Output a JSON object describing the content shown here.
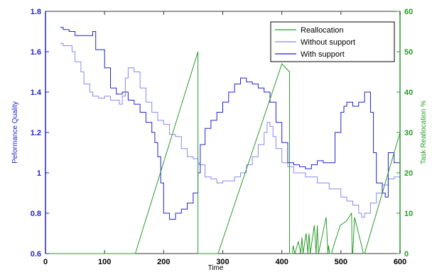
{
  "chart_data": {
    "type": "line",
    "xlabel": "Time",
    "ylabel_left": "Peformance Quality",
    "ylabel_right": "Task Reallocation %",
    "xlim": [
      0,
      600
    ],
    "ylim_left": [
      0.6,
      1.8
    ],
    "ylim_right": [
      0,
      60
    ],
    "xticks": [
      "0",
      "100",
      "200",
      "300",
      "400",
      "500",
      "600"
    ],
    "yticks_left": [
      "0.6",
      "0.8",
      "1",
      "1.2",
      "1.4",
      "1.6",
      "1.8"
    ],
    "yticks_right": [
      "0",
      "10",
      "20",
      "30",
      "40",
      "50",
      "60"
    ],
    "legend_position": "top-right",
    "colors": {
      "reallocation": "#2a9a2a",
      "without_support": "#8888ee",
      "with_support": "#2222cc",
      "axis_left": "#2222cc",
      "axis_right": "#2a9a2a"
    },
    "series": [
      {
        "name": "Reallocation",
        "axis": "right",
        "x": [
          0,
          152,
          258,
          258,
          260,
          290,
          292,
          400,
          413,
          413,
          414,
          418,
          419,
          422,
          428,
          432,
          434,
          436,
          441,
          444,
          446,
          448,
          455,
          458,
          460,
          462,
          475,
          478,
          479,
          481,
          484,
          490,
          499,
          509,
          518,
          519,
          520,
          523,
          535,
          538,
          540,
          600
        ],
        "y": [
          0,
          0,
          50,
          0,
          0,
          0,
          0,
          47,
          45,
          0,
          0,
          0,
          2,
          0,
          3,
          0,
          4,
          0,
          5,
          0,
          5,
          0,
          7,
          0,
          7,
          0,
          9,
          0,
          2,
          0,
          0,
          3,
          7,
          8,
          10,
          0,
          0,
          9,
          2,
          0,
          0,
          30
        ]
      },
      {
        "name": "Without support",
        "axis": "left",
        "x": [
          25,
          30,
          45,
          50,
          60,
          65,
          75,
          80,
          90,
          100,
          110,
          125,
          130,
          135,
          140,
          150,
          160,
          170,
          180,
          190,
          200,
          210,
          220,
          230,
          240,
          250,
          258,
          260,
          270,
          280,
          290,
          300,
          320,
          330,
          340,
          350,
          360,
          370,
          375,
          380,
          385,
          390,
          400,
          410,
          420,
          440,
          460,
          480,
          500,
          510,
          520,
          530,
          535,
          540,
          550,
          560,
          570,
          580,
          590,
          600
        ],
        "y": [
          1.64,
          1.63,
          1.6,
          1.55,
          1.5,
          1.44,
          1.4,
          1.38,
          1.37,
          1.38,
          1.36,
          1.34,
          1.38,
          1.47,
          1.52,
          1.5,
          1.42,
          1.35,
          1.3,
          1.26,
          1.24,
          1.19,
          1.18,
          1.12,
          1.08,
          1.07,
          1.05,
          1.04,
          0.98,
          0.97,
          0.95,
          0.96,
          0.98,
          1.0,
          1.04,
          1.08,
          1.14,
          1.2,
          1.25,
          1.23,
          1.18,
          1.12,
          1.05,
          1.03,
          1.0,
          0.98,
          0.95,
          0.92,
          0.88,
          0.86,
          0.84,
          0.8,
          0.78,
          0.8,
          0.85,
          0.9,
          0.94,
          0.97,
          0.98,
          1.0
        ]
      },
      {
        "name": "With support",
        "axis": "left",
        "x": [
          25,
          30,
          40,
          50,
          60,
          80,
          85,
          100,
          110,
          120,
          130,
          140,
          150,
          160,
          170,
          180,
          185,
          190,
          195,
          200,
          210,
          220,
          230,
          240,
          250,
          258,
          262,
          270,
          280,
          290,
          300,
          310,
          320,
          330,
          340,
          350,
          360,
          370,
          380,
          390,
          400,
          410,
          420,
          430,
          440,
          450,
          460,
          470,
          480,
          490,
          500,
          505,
          510,
          520,
          530,
          540,
          550,
          555,
          560,
          570,
          575,
          580,
          590,
          600
        ],
        "y": [
          1.72,
          1.71,
          1.7,
          1.68,
          1.68,
          1.7,
          1.61,
          1.52,
          1.42,
          1.39,
          1.4,
          1.36,
          1.34,
          1.3,
          1.25,
          1.2,
          1.15,
          1.08,
          0.95,
          0.8,
          0.77,
          0.8,
          0.82,
          0.85,
          0.9,
          1.0,
          1.14,
          1.22,
          1.26,
          1.3,
          1.35,
          1.4,
          1.44,
          1.47,
          1.45,
          1.44,
          1.42,
          1.4,
          1.35,
          1.25,
          1.15,
          1.05,
          1.04,
          1.03,
          1.02,
          1.04,
          1.06,
          1.05,
          1.05,
          1.2,
          1.3,
          1.33,
          1.35,
          1.33,
          1.35,
          1.4,
          1.3,
          1.1,
          0.95,
          0.9,
          0.88,
          1.1,
          1.05,
          1.04
        ]
      }
    ]
  }
}
